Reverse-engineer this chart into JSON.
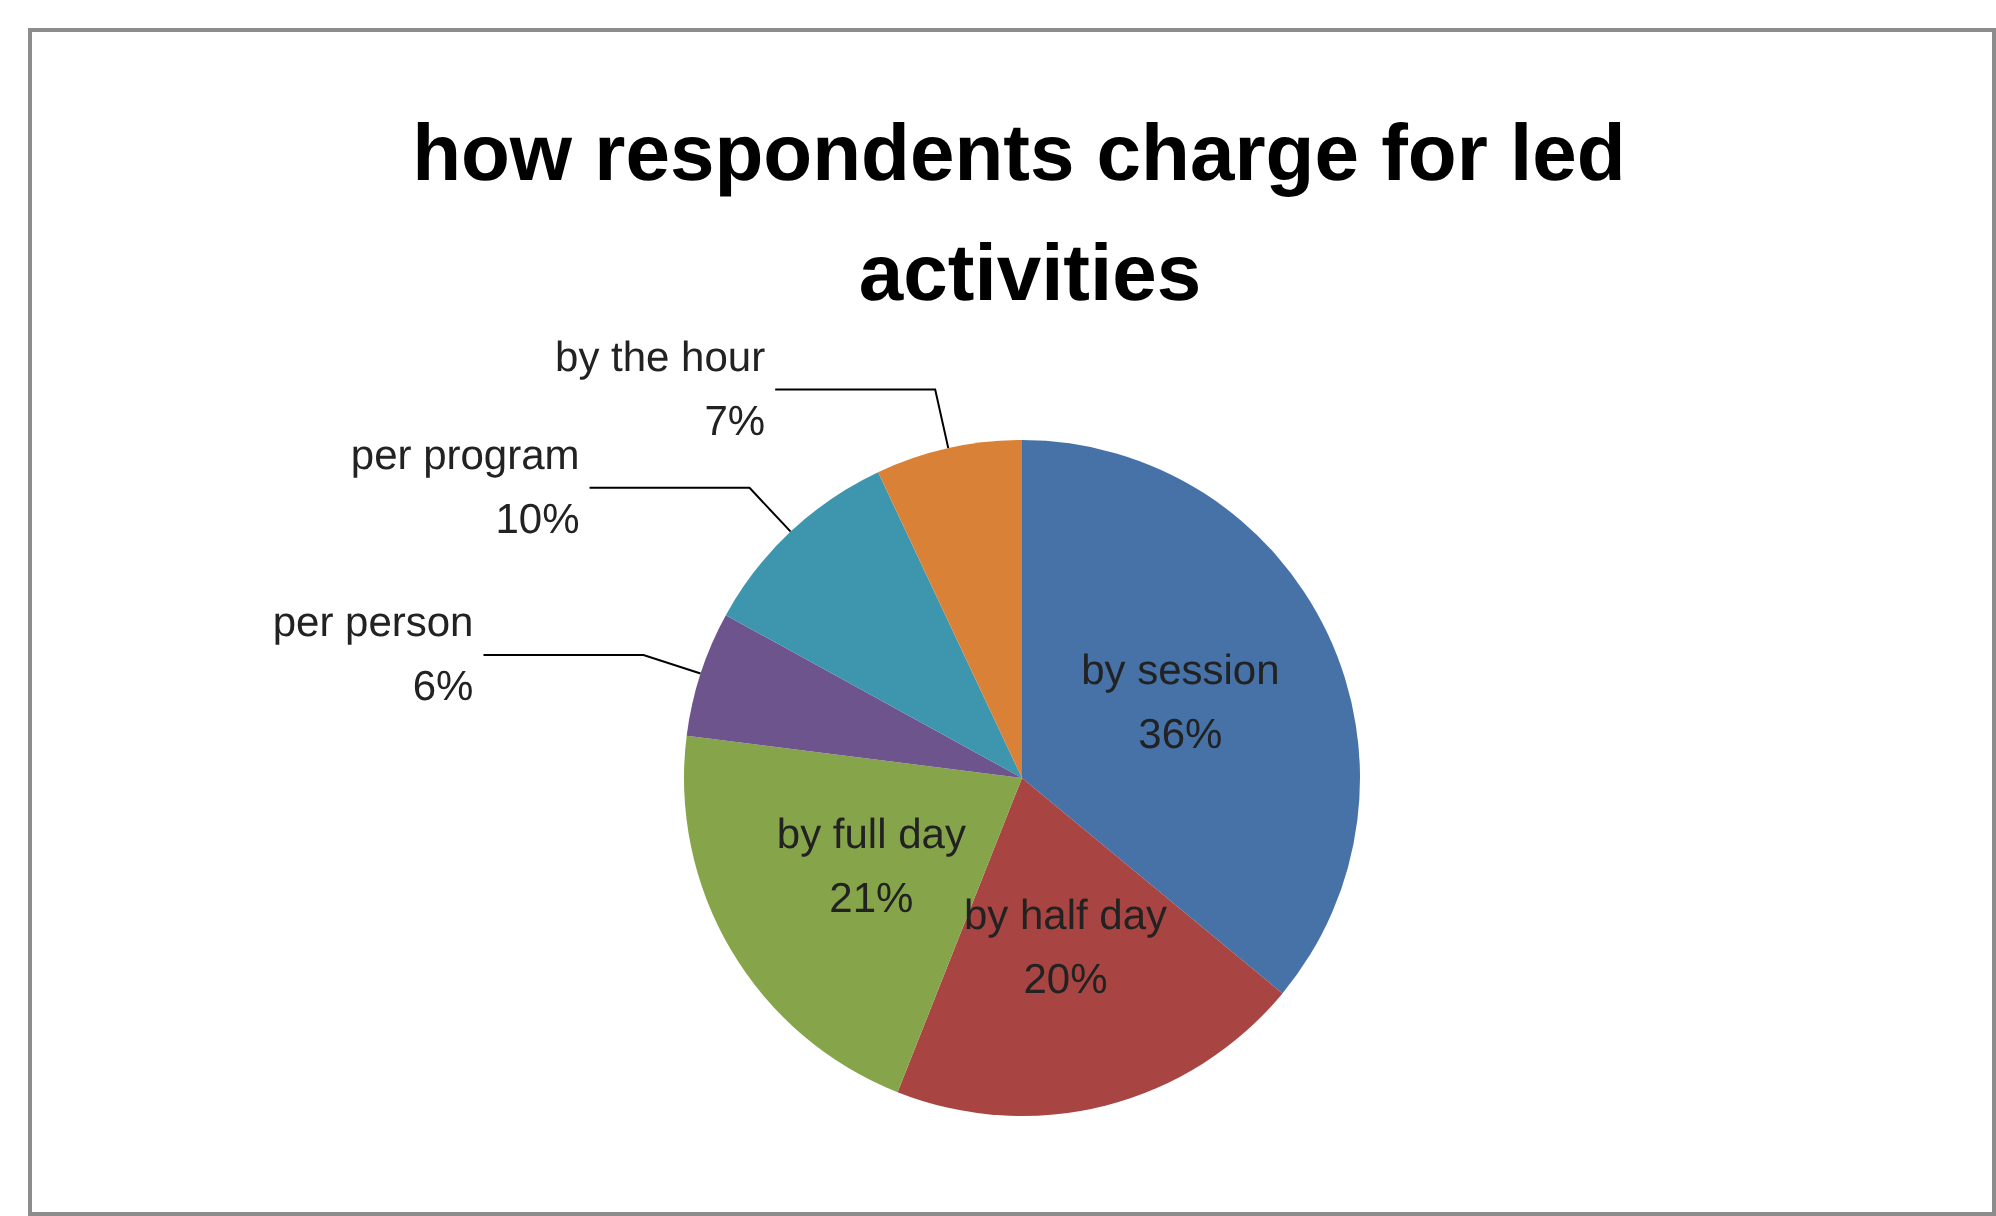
{
  "chart_data": {
    "type": "pie",
    "title": "how respondents charge for led activities",
    "categories": [
      "by session",
      "by half day",
      "by full day",
      "per person",
      "per program",
      "by the hour"
    ],
    "values": [
      36,
      20,
      21,
      6,
      10,
      7
    ],
    "value_labels": [
      "36%",
      "20%",
      "21%",
      "6%",
      "10%",
      "7%"
    ],
    "colors": [
      "#4672a8",
      "#a84542",
      "#86a44a",
      "#6e548d",
      "#3d96ae",
      "#da8138"
    ]
  }
}
